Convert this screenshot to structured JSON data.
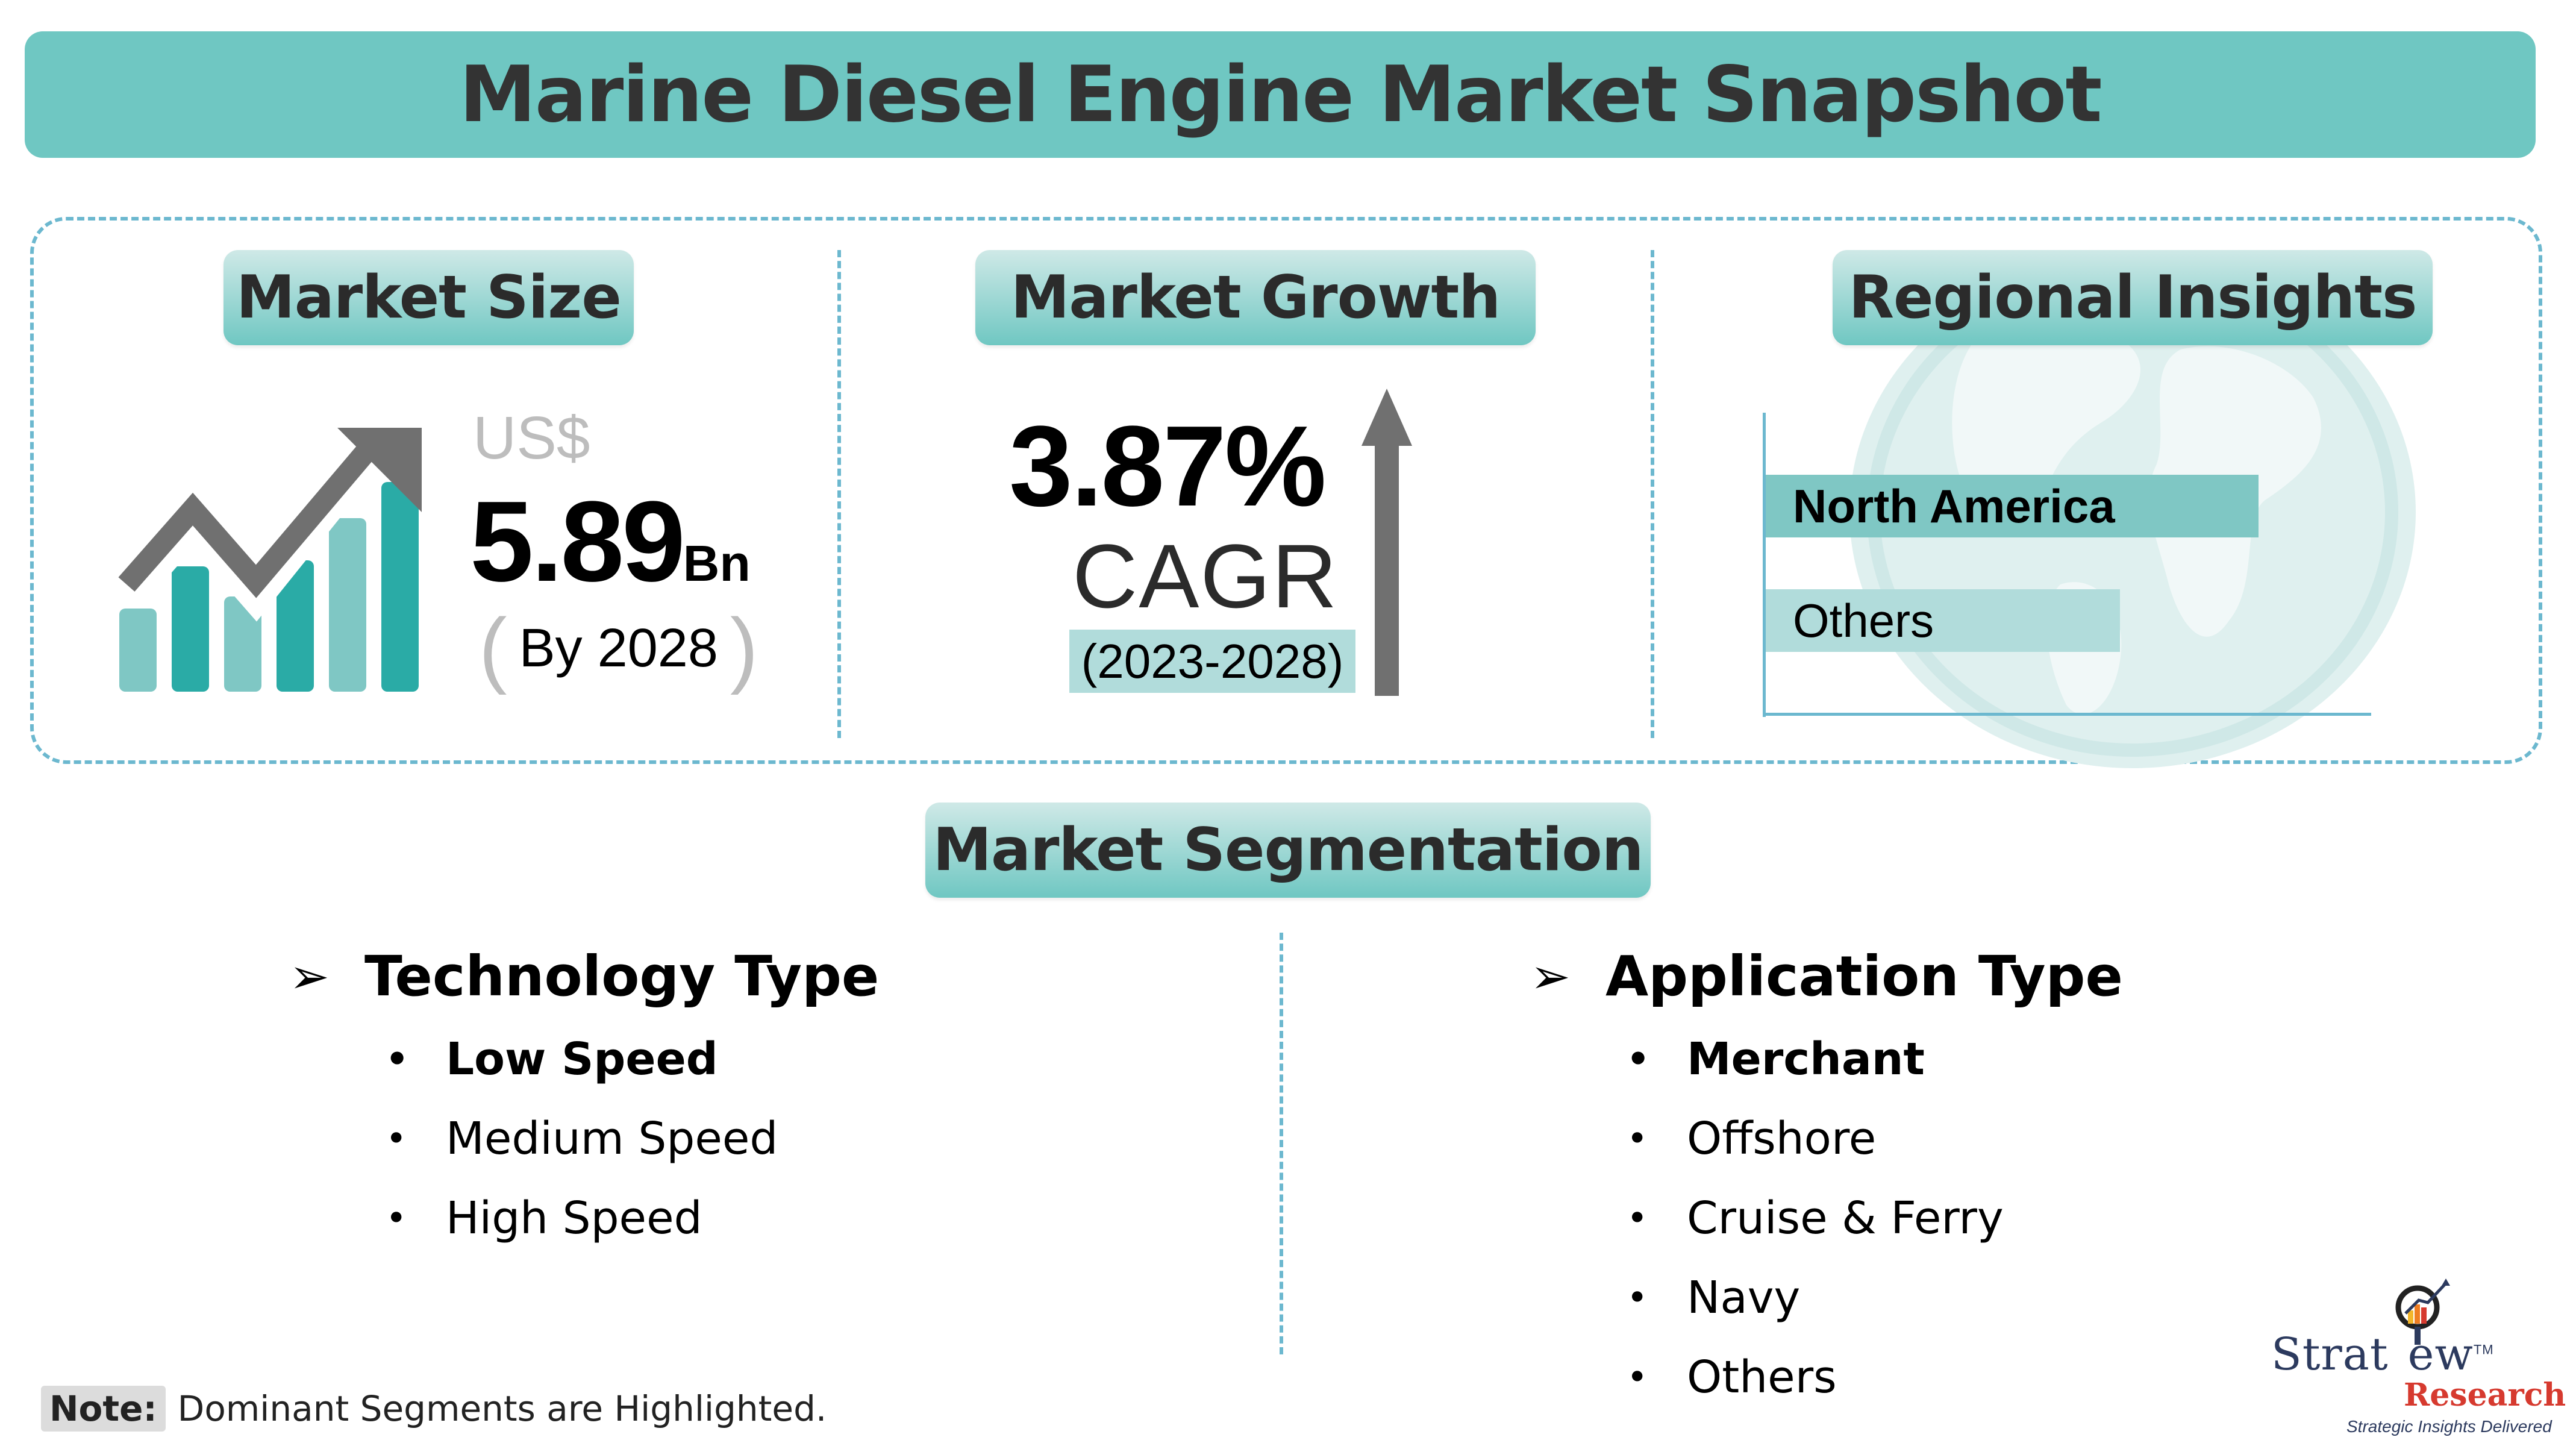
{
  "header": {
    "title": "Marine Diesel Engine Market Snapshot"
  },
  "market_size": {
    "label": "Market Size",
    "currency": "US$",
    "value": "5.89",
    "unit": "Bn",
    "paren_open": "(",
    "year_text": "By 2028",
    "paren_close": ")"
  },
  "market_growth": {
    "label": "Market Growth",
    "cagr_value": "3.87%",
    "cagr_label": "CAGR",
    "period": "(2023-2028)"
  },
  "regional_insights": {
    "label": "Regional Insights",
    "regions": [
      {
        "name": "North America",
        "dominant": true,
        "share_relative": 1.0
      },
      {
        "name": "Others",
        "dominant": false,
        "share_relative": 0.72
      }
    ]
  },
  "segmentation": {
    "label": "Market Segmentation",
    "groups": [
      {
        "title": "Technology Type",
        "items": [
          {
            "label": "Low Speed",
            "dominant": true
          },
          {
            "label": "Medium Speed",
            "dominant": false
          },
          {
            "label": "High Speed",
            "dominant": false
          }
        ]
      },
      {
        "title": "Application Type",
        "items": [
          {
            "label": "Merchant",
            "dominant": true
          },
          {
            "label": "Offshore",
            "dominant": false
          },
          {
            "label": "Cruise & Ferry",
            "dominant": false
          },
          {
            "label": "Navy",
            "dominant": false
          },
          {
            "label": "Others",
            "dominant": false
          }
        ]
      }
    ],
    "arrow_glyph": "➢",
    "bullet_glyph": "•"
  },
  "note": {
    "label": "Note:",
    "text": "Dominant Segments are Highlighted."
  },
  "logo": {
    "name_part1": "Strat",
    "name_part2": "ew",
    "trademark": "TM",
    "sub": "Research",
    "tagline": "Strategic Insights Delivered"
  },
  "colors": {
    "teal": "#6fc7c2",
    "teal_dark": "#2aaba6",
    "teal_light": "#7fc7c4",
    "dash": "#6cb8cf",
    "gray_arrow": "#707070",
    "logo_navy": "#2c3a5e",
    "logo_red": "#d63a2f"
  }
}
